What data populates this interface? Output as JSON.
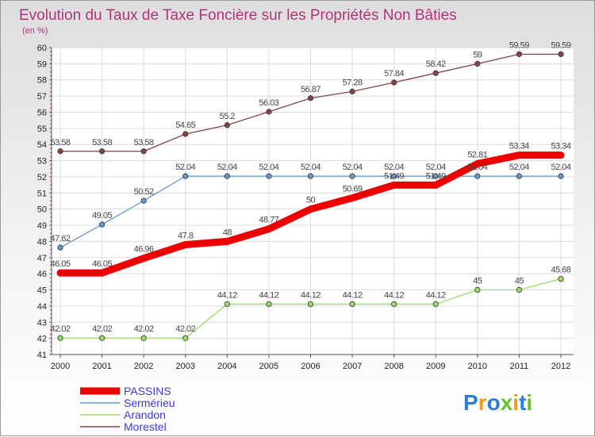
{
  "chart_data": {
    "type": "line",
    "title": "Evolution du Taux de Taxe Foncière sur les Propriétés Non Bâties",
    "subtitle": "(en %)",
    "xlabel": "",
    "ylabel": "",
    "ylim": [
      41,
      60
    ],
    "categories": [
      "2000",
      "2001",
      "2002",
      "2003",
      "2004",
      "2005",
      "2006",
      "2007",
      "2008",
      "2009",
      "2010",
      "2011",
      "2012"
    ],
    "series": [
      {
        "name": "PASSINS",
        "color": "#ee0000",
        "values": [
          46.05,
          46.05,
          46.96,
          47.8,
          48,
          48.77,
          50,
          50.69,
          51.49,
          51.49,
          52.81,
          53.34,
          53.34
        ],
        "labels": [
          "46.05",
          "46.05",
          "46.96",
          "47.8",
          "48",
          "48.77",
          "50",
          "50.69",
          "51.49",
          "51.49",
          "52.81",
          "53.34",
          "53.34"
        ]
      },
      {
        "name": "Sermérieu",
        "color": "#6699cc",
        "values": [
          47.62,
          49.05,
          50.52,
          52.04,
          52.04,
          52.04,
          52.04,
          52.04,
          52.04,
          52.04,
          52.04,
          52.04,
          52.04
        ],
        "labels": [
          "47.62",
          "49.05",
          "50.52",
          "52.04",
          "52.04",
          "52.04",
          "52.04",
          "52.04",
          "52.04",
          "52.04",
          "52.04",
          "52.04",
          "52.04"
        ]
      },
      {
        "name": "Arandon",
        "color": "#99dd66",
        "values": [
          42.02,
          42.02,
          42.02,
          42.02,
          44.12,
          44.12,
          44.12,
          44.12,
          44.12,
          44.12,
          45,
          45,
          45.68
        ],
        "labels": [
          "42.02",
          "42.02",
          "42.02",
          "42.02",
          "44.12",
          "44.12",
          "44.12",
          "44.12",
          "44.12",
          "44.12",
          "45",
          "45",
          "45.68"
        ]
      },
      {
        "name": "Morestel",
        "color": "#884444",
        "values": [
          53.58,
          53.58,
          53.58,
          54.65,
          55.2,
          56.03,
          56.87,
          57.28,
          57.84,
          58.42,
          59,
          59.59,
          59.59
        ],
        "labels": [
          "53.58",
          "53.58",
          "53.58",
          "54.65",
          "55.2",
          "56.03",
          "56.87",
          "57.28",
          "57.84",
          "58.42",
          "59",
          "59.59",
          "59.59"
        ]
      }
    ],
    "legend_position": "bottom-left"
  },
  "logo": {
    "text": "Proxiti"
  }
}
